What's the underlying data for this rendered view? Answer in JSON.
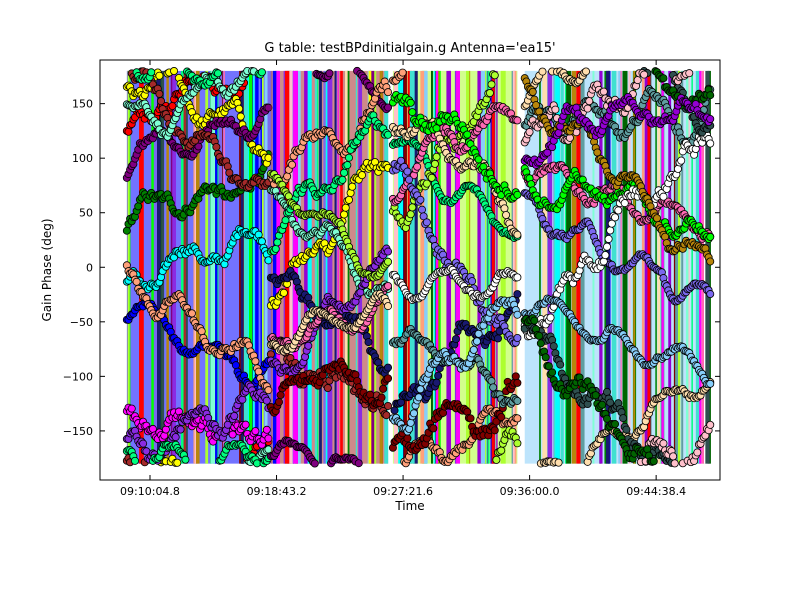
{
  "chart_data": {
    "type": "scatter",
    "title": "G table: testBPdinitialgain.g      Antenna='ea15'",
    "xlabel": "Time",
    "ylabel": "Gain Phase (deg)",
    "ylim": [
      -195,
      190
    ],
    "xlim": [
      "09:06:40",
      "09:49:00"
    ],
    "x_ticks": [
      "09:10:04.8",
      "09:18:43.2",
      "09:27:21.6",
      "09:36:00.0",
      "09:44:38.4"
    ],
    "y_ticks": [
      150,
      100,
      50,
      0,
      -50,
      -100,
      -150
    ],
    "grid": false,
    "legend": "none",
    "marker": "circle",
    "scan_blocks": [
      {
        "x_start": "09:08:30",
        "x_end": "09:18:10"
      },
      {
        "x_start": "09:18:20",
        "x_end": "09:26:20"
      },
      {
        "x_start": "09:26:40",
        "x_end": "09:35:10"
      },
      {
        "x_start": "09:35:40",
        "x_end": "09:48:20"
      }
    ],
    "series_colors": [
      "#0000ff",
      "#008000",
      "#ff0000",
      "#00ffff",
      "#ff00ff",
      "#ffff00",
      "#800080",
      "#a52a2a",
      "#7fffd4",
      "#8a2be2",
      "#ffa07a",
      "#00ff7f",
      "#191970",
      "#800000",
      "#adff2f",
      "#ff69b4",
      "#ffdead",
      "#5f9ea0",
      "#7b68ee",
      "#00ff00",
      "#ffffff",
      "#87cefa",
      "#2f4f4f",
      "#ffc0cb",
      "#006400",
      "#b8860b",
      "#9400d3",
      "#40e0d0"
    ]
  }
}
